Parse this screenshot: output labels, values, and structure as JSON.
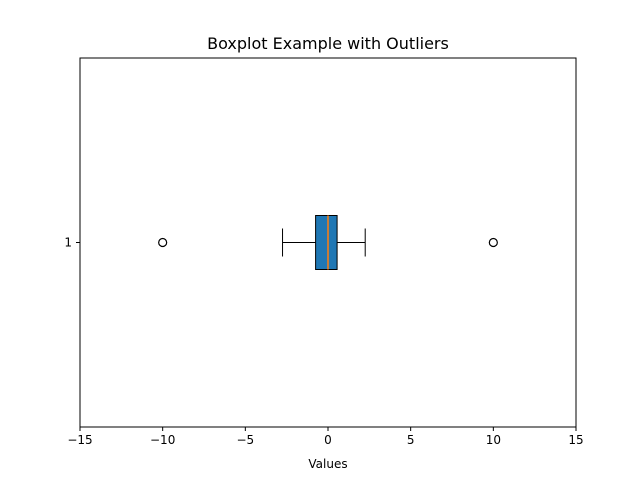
{
  "chart_data": {
    "type": "boxplot",
    "orientation": "horizontal",
    "title": "Boxplot Example with Outliers",
    "xlabel": "Values",
    "ylabel": "",
    "xlim": [
      -15,
      15
    ],
    "xticks": [
      -15,
      -10,
      -5,
      0,
      5,
      10,
      15
    ],
    "xtick_labels": [
      "−15",
      "−10",
      "−5",
      "0",
      "5",
      "10",
      "15"
    ],
    "categories": [
      "1"
    ],
    "boxes": [
      {
        "category": "1",
        "whisker_low": -2.75,
        "q1": -0.75,
        "median": 0.0,
        "q3": 0.55,
        "whisker_high": 2.25,
        "outliers": [
          -10,
          10
        ]
      }
    ],
    "grid": false,
    "colors": {
      "box_fill": "#1f77b4",
      "median": "#ff7f0e",
      "lines": "#000000"
    }
  }
}
